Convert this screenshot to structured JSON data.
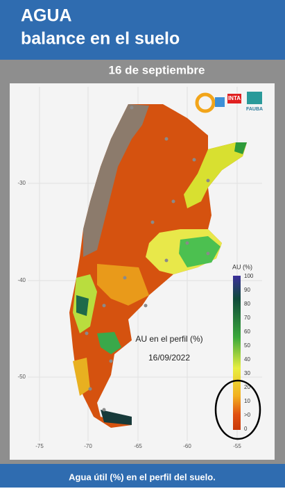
{
  "header": {
    "title_line1": "AGUA",
    "title_line2": "balance en el suelo"
  },
  "date": "16 de septiembre",
  "logos": {
    "inta": "INTA",
    "fauba": "FAUBA"
  },
  "map_axes": {
    "y_labels": [
      "-30",
      "-40",
      "-50"
    ],
    "x_labels": [
      "-75",
      "-70",
      "-65",
      "-60",
      "-55"
    ]
  },
  "legend": {
    "title": "AU (%)",
    "labels": [
      "100",
      "90",
      "80",
      "70",
      "60",
      "50",
      "40",
      "30",
      "20",
      "10",
      ">0",
      "0"
    ]
  },
  "annotation": {
    "line1": "AU en el perfil (%)",
    "line2": "16/09/2022"
  },
  "footer": "Agua útil (%) en el perfil del suelo."
}
